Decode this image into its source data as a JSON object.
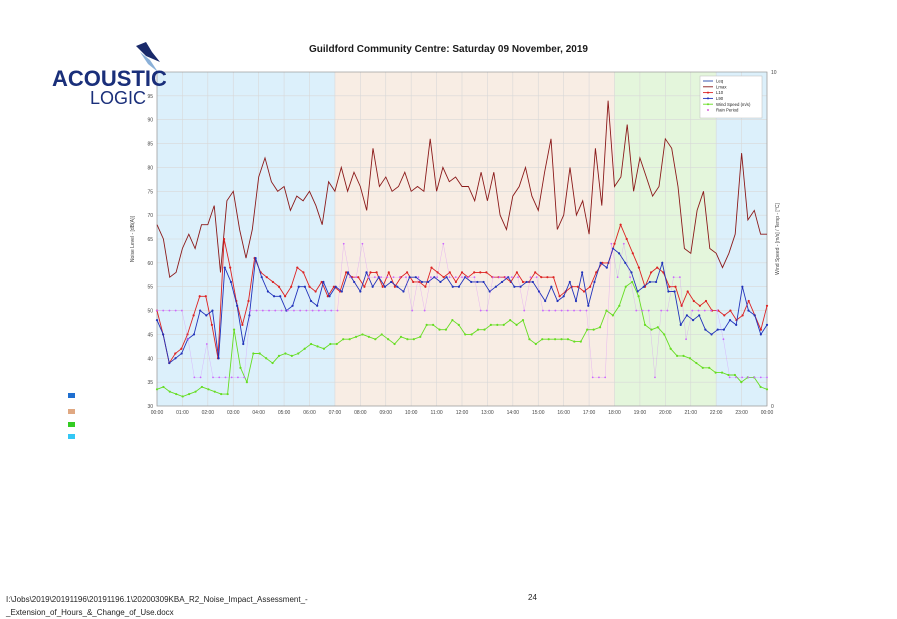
{
  "logo": {
    "line1": "ACOUSTIC",
    "line2": "LOGIC"
  },
  "footer": {
    "path_line1": "I:\\Jobs\\2019\\20191196\\20191196.1\\20200309KBA_R2_Noise_Impact_Assessment_-",
    "path_line2": "_Extension_of_Hours_&_Change_of_Use.docx",
    "page": "24"
  },
  "period_swatches": [
    {
      "color": "#1f6fd0"
    },
    {
      "color": "#e0a882"
    },
    {
      "color": "#33cc22"
    },
    {
      "color": "#33c7f5"
    }
  ],
  "chart_data": {
    "type": "line",
    "title": "Guildford Community Centre: Saturday 09 November, 2019",
    "ylabel": "Noise Level - [dB(A)]",
    "y2label": "Wind Speed - [m/s] / Temp - [°C]",
    "ylim": [
      30,
      100
    ],
    "y2lim": [
      0,
      10
    ],
    "yticks": [
      30,
      35,
      40,
      45,
      50,
      55,
      60,
      65,
      70,
      75,
      80,
      85,
      90,
      95
    ],
    "y2ticks": [
      0,
      10
    ],
    "xticks": [
      "00:00",
      "01:00",
      "02:00",
      "03:00",
      "04:00",
      "05:00",
      "06:00",
      "07:00",
      "08:00",
      "09:00",
      "10:00",
      "11:00",
      "12:00",
      "13:00",
      "14:00",
      "15:00",
      "16:00",
      "17:00",
      "18:00",
      "19:00",
      "20:00",
      "21:00",
      "22:00",
      "23:00",
      "00:00"
    ],
    "x_unit_per_point": "15 min",
    "grid": true,
    "legend_position": "top-right",
    "shaded_periods": [
      {
        "start_hour": 0,
        "end_hour": 7,
        "color": "#dcf0fb"
      },
      {
        "start_hour": 7,
        "end_hour": 18,
        "color": "#f8ede4"
      },
      {
        "start_hour": 18,
        "end_hour": 22,
        "color": "#e4f6dc"
      },
      {
        "start_hour": 22,
        "end_hour": 24,
        "color": "#dcf0fb"
      }
    ],
    "series": [
      {
        "name": "Leq",
        "color": "#2244aa",
        "marker": "none",
        "axis": "left",
        "values": []
      },
      {
        "name": "Lmax",
        "color": "#8b1a1a",
        "marker": "none",
        "axis": "left",
        "values": [
          68,
          65,
          57,
          58,
          63,
          66,
          63,
          68,
          68,
          72,
          58,
          73,
          75,
          67,
          61,
          67,
          78,
          82,
          77,
          75,
          76,
          71,
          74,
          73,
          75,
          72,
          68,
          77,
          75,
          80,
          75,
          79,
          76,
          71,
          84,
          76,
          78,
          75,
          76,
          79,
          75,
          76,
          75,
          86,
          75,
          80,
          77,
          78,
          76,
          76,
          73,
          79,
          73,
          79,
          70,
          67,
          74,
          76,
          80,
          74,
          71,
          79,
          86,
          67,
          70,
          80,
          70,
          73,
          66,
          84,
          72,
          94,
          76,
          78,
          89,
          75,
          82,
          78,
          74,
          76,
          86,
          84,
          76,
          63,
          62,
          71,
          75,
          63,
          62,
          59,
          62,
          66,
          83,
          69,
          71,
          66,
          66
        ]
      },
      {
        "name": "L10",
        "color": "#dd2222",
        "marker": "o",
        "axis": "left",
        "values": [
          50,
          45,
          39,
          41,
          42,
          45,
          49,
          53,
          53,
          47,
          40,
          65,
          59,
          52,
          47,
          52,
          61,
          58,
          57,
          56,
          55,
          53,
          55,
          59,
          58,
          55,
          54,
          56,
          53,
          55,
          54,
          58,
          57,
          57,
          55,
          58,
          58,
          55,
          58,
          55,
          57,
          58,
          56,
          56,
          55,
          59,
          58,
          57,
          58,
          56,
          58,
          57,
          58,
          58,
          58,
          57,
          57,
          57,
          56,
          58,
          56,
          56,
          58,
          57,
          57,
          57,
          53,
          54,
          55,
          55,
          54,
          55,
          58,
          60,
          60,
          64,
          68,
          65,
          62,
          59,
          55,
          58,
          59,
          58,
          55,
          55,
          51,
          54,
          52,
          51,
          52,
          50,
          50,
          49,
          50,
          48,
          49,
          52,
          49,
          46,
          51
        ]
      },
      {
        "name": "L90",
        "color": "#2233bb",
        "marker": "o",
        "axis": "left",
        "values": [
          48,
          45,
          39,
          40,
          41,
          44,
          45,
          50,
          49,
          50,
          40,
          59,
          56,
          51,
          43,
          49,
          61,
          57,
          54,
          53,
          53,
          50,
          51,
          55,
          55,
          52,
          51,
          56,
          53,
          55,
          54,
          58,
          56,
          54,
          58,
          55,
          57,
          55,
          56,
          55,
          54,
          57,
          57,
          56,
          56,
          57,
          56,
          57,
          55,
          55,
          57,
          56,
          56,
          56,
          54,
          55,
          56,
          57,
          55,
          55,
          56,
          56,
          54,
          52,
          55,
          52,
          53,
          56,
          52,
          58,
          51,
          56,
          60,
          59,
          63,
          62,
          60,
          58,
          54,
          55,
          56,
          56,
          60,
          54,
          54,
          47,
          49,
          48,
          49,
          46,
          45,
          46,
          46,
          48,
          47,
          55,
          50,
          49,
          45,
          47
        ]
      },
      {
        "name": "Wind Speed (m/s)",
        "color": "#66dd22",
        "marker": "o",
        "axis": "left",
        "values": [
          33.5,
          34,
          33,
          32.5,
          32,
          32.5,
          33,
          34,
          33.5,
          33,
          32.5,
          32.5,
          46,
          38,
          35,
          41,
          41,
          40,
          39,
          40.5,
          41,
          40.5,
          41,
          42,
          43,
          42.5,
          42,
          43,
          43,
          44,
          44,
          44.5,
          45,
          44.5,
          44,
          45,
          44,
          43,
          44.5,
          44,
          44,
          44.5,
          47,
          47,
          46,
          46,
          48,
          47,
          45,
          45,
          46,
          46,
          47,
          47,
          47,
          48,
          47,
          48,
          44,
          43,
          44,
          44,
          44,
          44,
          44,
          43.5,
          43.5,
          46,
          46,
          46.5,
          50,
          49,
          51,
          55,
          56,
          53,
          47,
          46,
          46.5,
          45,
          42,
          40.5,
          40.5,
          40,
          39,
          38,
          38,
          37,
          37,
          36.5,
          36.5,
          35,
          36,
          36,
          34,
          33.5
        ]
      },
      {
        "name": "Rain Period",
        "color": "#cc33cc",
        "marker": "dot",
        "axis": "left",
        "values": []
      },
      {
        "name": "",
        "color": "#cc66ff",
        "marker": "dot",
        "axis": "right",
        "note": "dotted magenta series on secondary axis",
        "values": [
          50,
          50,
          50,
          50,
          50,
          44,
          36,
          36,
          43,
          36,
          36,
          36,
          36,
          36,
          36,
          50,
          50,
          50,
          50,
          50,
          50,
          50,
          50,
          50,
          50,
          50,
          50,
          50,
          50,
          50,
          64,
          57,
          57,
          64,
          57,
          57,
          57,
          57,
          57,
          57,
          57,
          50,
          57,
          50,
          57,
          57,
          64,
          57,
          57,
          57,
          57,
          57,
          50,
          50,
          57,
          57,
          57,
          57,
          57,
          50,
          57,
          57,
          50,
          50,
          50,
          50,
          50,
          50,
          50,
          50,
          36,
          36,
          36,
          64,
          57,
          64,
          57,
          50,
          50,
          50,
          36,
          50,
          50,
          57,
          57,
          44,
          50,
          50,
          50,
          50,
          50,
          44,
          36,
          36,
          36,
          36,
          36,
          36,
          36
        ]
      }
    ]
  }
}
